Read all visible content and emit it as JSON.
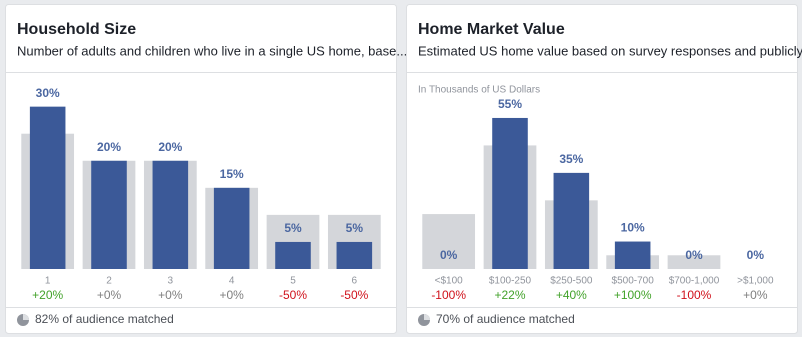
{
  "chart_data": [
    {
      "type": "bar",
      "title": "Household Size",
      "subtitle": "Number of adults and children who live in a single US home, base...",
      "categories": [
        "1",
        "2",
        "3",
        "4",
        "5",
        "6"
      ],
      "series": [
        {
          "color": "#d4d6da",
          "values": [
            25,
            20,
            20,
            15,
            10,
            10
          ]
        },
        {
          "color": "#3b5998",
          "values": [
            30,
            20,
            20,
            15,
            5,
            5
          ],
          "value_labels": [
            "30%",
            "20%",
            "20%",
            "15%",
            "5%",
            "5%"
          ]
        }
      ],
      "changes": [
        20,
        0,
        0,
        0,
        -50,
        -50
      ],
      "change_labels": [
        "+20%",
        "+0%",
        "+0%",
        "+0%",
        "-50%",
        "-50%"
      ],
      "ylim": [
        0,
        34
      ],
      "footer": "82% of audience matched"
    },
    {
      "type": "bar",
      "title": "Home Market Value",
      "subtitle": "Estimated US home value based on survey responses and publicly...",
      "axis_note": "In Thousands of US Dollars",
      "categories": [
        "<$100",
        "$100-250",
        "$250-500",
        "$500-700",
        "$700-1,000",
        ">$1,000"
      ],
      "series": [
        {
          "color": "#d4d6da",
          "values": [
            20,
            45,
            25,
            5,
            5,
            0
          ]
        },
        {
          "color": "#3b5998",
          "values": [
            0,
            55,
            35,
            10,
            0,
            0
          ],
          "value_labels": [
            "0%",
            "55%",
            "35%",
            "10%",
            "0%",
            "0%"
          ]
        }
      ],
      "changes": [
        -100,
        22,
        40,
        100,
        -100,
        0
      ],
      "change_labels": [
        "-100%",
        "+22%",
        "+40%",
        "+100%",
        "-100%",
        "+0%"
      ],
      "ylim": [
        0,
        67
      ],
      "footer": "70% of audience matched"
    }
  ]
}
